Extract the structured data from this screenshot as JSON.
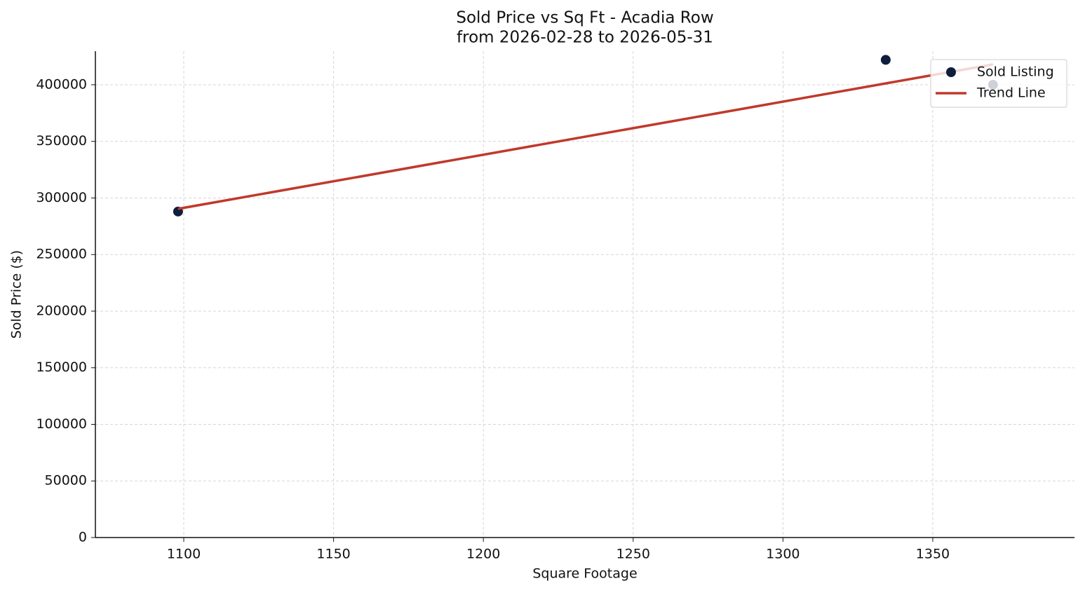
{
  "chart_data": {
    "type": "scatter",
    "title": "Sold Price vs Sq Ft - Acadia Row",
    "subtitle": "from 2026-02-28 to 2026-05-31",
    "x_label": "Square Footage",
    "y_label": "Sold Price ($)",
    "series": [
      {
        "name": "Sold Listing",
        "color": "#0d1f3c",
        "type": "scatter",
        "x": [
          1098.1,
          1334.3,
          1370.1
        ],
        "values": [
          288000,
          422000,
          400000
        ]
      },
      {
        "name": "Trend Line",
        "color": "#c0392b",
        "type": "line",
        "x": [
          1098.1,
          1370.1
        ],
        "values": [
          290400,
          418000
        ]
      }
    ],
    "xlim": [
      1070.5,
      1397.3
    ],
    "ylim": [
      0,
      429700
    ],
    "xticks": [
      1100,
      1150,
      1200,
      1250,
      1300,
      1350
    ],
    "yticks": [
      0,
      50000,
      100000,
      150000,
      200000,
      250000,
      300000,
      350000,
      400000
    ],
    "grid": true,
    "legend": "upper right"
  }
}
